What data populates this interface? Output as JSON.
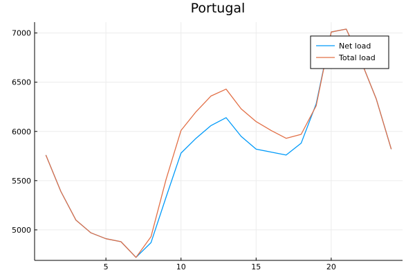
{
  "chart_data": {
    "type": "line",
    "title": "Portugal",
    "xlabel": "",
    "ylabel": "",
    "xlim": [
      0.25,
      24.75
    ],
    "ylim": [
      4690,
      7110
    ],
    "xticks": [
      5,
      10,
      15,
      20
    ],
    "yticks": [
      5000,
      5500,
      6000,
      6500,
      7000
    ],
    "grid": true,
    "legend_position": "top-right",
    "x": [
      1,
      2,
      3,
      4,
      5,
      6,
      7,
      8,
      9,
      10,
      11,
      12,
      13,
      14,
      15,
      16,
      17,
      18,
      19,
      20,
      21,
      22,
      23,
      24
    ],
    "series": [
      {
        "name": "Net load",
        "color": "#009af9",
        "values": [
          5760,
          5390,
          5100,
          4970,
          4910,
          4880,
          4720,
          4870,
          5330,
          5780,
          5930,
          6060,
          6140,
          5950,
          5820,
          5790,
          5760,
          5880,
          6280,
          7010,
          7040,
          6710,
          6330,
          5820
        ]
      },
      {
        "name": "Total load",
        "color": "#e26f46",
        "values": [
          5760,
          5390,
          5100,
          4970,
          4910,
          4880,
          4720,
          4930,
          5510,
          6010,
          6200,
          6360,
          6430,
          6230,
          6100,
          6010,
          5930,
          5970,
          6260,
          7010,
          7040,
          6710,
          6330,
          5820
        ]
      }
    ]
  }
}
